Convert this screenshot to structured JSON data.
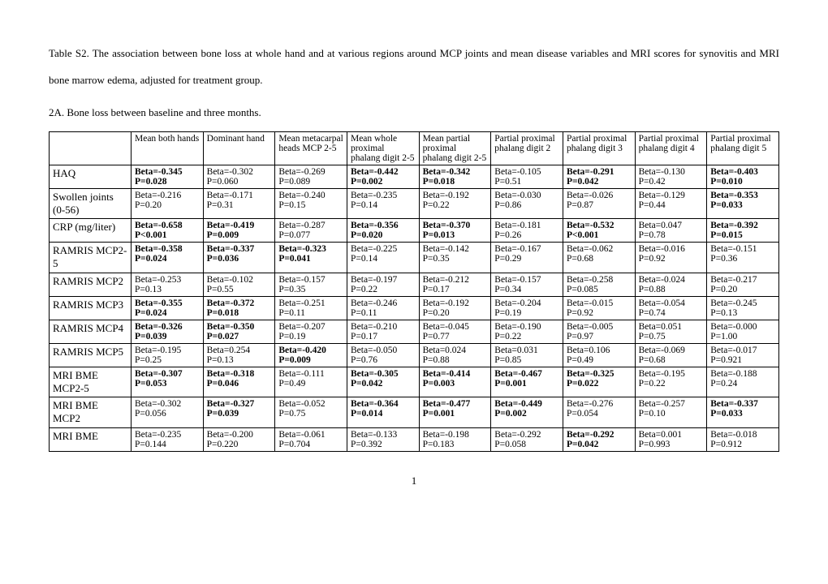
{
  "caption": "Table S2. The association between bone loss at whole hand and at various regions around MCP joints and mean disease variables and MRI scores for synovitis and MRI bone marrow edema, adjusted for treatment group.",
  "subtitle": "2A. Bone loss between baseline and three months.",
  "pageNumber": "1",
  "columns": [
    "",
    "Mean both hands",
    "Dominant hand",
    "Mean metacarpal heads MCP 2-5",
    "Mean whole proximal phalang digit 2-5",
    "Mean partial proximal phalang digit 2-5",
    "Partial proximal phalang digit 2",
    "Partial proximal phalang digit 3",
    "Partial proximal phalang digit 4",
    "Partial proximal phalang digit 5"
  ],
  "rows": [
    {
      "label": "HAQ",
      "cells": [
        {
          "beta": "Beta=-0.345",
          "p": "P=0.028",
          "bold": true
        },
        {
          "beta": "Beta=-0.302",
          "p": "P=0.060",
          "bold": false
        },
        {
          "beta": "Beta=-0.269",
          "p": "P=0.089",
          "bold": false
        },
        {
          "beta": "Beta=-0.442",
          "p": "P=0.002",
          "bold": true
        },
        {
          "beta": "Beta=-0.342",
          "p": "P=0.018",
          "bold": true
        },
        {
          "beta": "Beta=-0.105",
          "p": "P=0.51",
          "bold": false
        },
        {
          "beta": "Beta=-0.291",
          "p": "P=0.042",
          "bold": true
        },
        {
          "beta": "Beta=-0.130",
          "p": "P=0.42",
          "bold": false
        },
        {
          "beta": "Beta=-0.403",
          "p": "P=0.010",
          "bold": true
        }
      ]
    },
    {
      "label": "Swollen joints (0-56)",
      "cells": [
        {
          "beta": "Beta=-0.216",
          "p": "P=0.20",
          "bold": false
        },
        {
          "beta": "Beta=-0.171",
          "p": "P=0.31",
          "bold": false
        },
        {
          "beta": "Beta=-0.240",
          "p": "P=0.15",
          "bold": false
        },
        {
          "beta": "Beta=-0.235",
          "p": "P=0.14",
          "bold": false
        },
        {
          "beta": "Beta=-0.192",
          "p": "P=0.22",
          "bold": false
        },
        {
          "beta": "Beta=-0.030",
          "p": "P=0.86",
          "bold": false
        },
        {
          "beta": "Beta=-0.026",
          "p": "P=0.87",
          "bold": false
        },
        {
          "beta": "Beta=-0.129",
          "p": "P=0.44",
          "bold": false
        },
        {
          "beta": "Beta=-0.353",
          "p": "P=0.033",
          "bold": true
        }
      ]
    },
    {
      "label": "CRP (mg/liter)",
      "cells": [
        {
          "beta": "Beta=-0.658",
          "p": "P<0.001",
          "bold": true
        },
        {
          "beta": "Beta=-0.419",
          "p": "P=0.009",
          "bold": true
        },
        {
          "beta": "Beta=-0.287",
          "p": "P=0.077",
          "bold": false
        },
        {
          "beta": "Beta=-0.356",
          "p": "P=0.020",
          "bold": true
        },
        {
          "beta": "Beta=-0.370",
          "p": "P=0.013",
          "bold": true
        },
        {
          "beta": "Beta=-0.181",
          "p": "P=0.26",
          "bold": false
        },
        {
          "beta": "Beta=-0.532",
          "p": "P<0.001",
          "bold": true
        },
        {
          "beta": "Beta=0.047",
          "p": "P=0.78",
          "bold": false
        },
        {
          "beta": "Beta=-0.392",
          "p": "P=0.015",
          "bold": true
        }
      ]
    },
    {
      "label": "RAMRIS MCP2-5",
      "cells": [
        {
          "beta": "Beta=-0.358",
          "p": "P=0.024",
          "bold": true
        },
        {
          "beta": "Beta=-0.337",
          "p": "P=0.036",
          "bold": true
        },
        {
          "beta": "Beta=-0.323",
          "p": "P=0.041",
          "bold": true
        },
        {
          "beta": "Beta=-0.225",
          "p": "P=0.14",
          "bold": false
        },
        {
          "beta": "Beta=-0.142",
          "p": "P=0.35",
          "bold": false
        },
        {
          "beta": "Beta=-0.167",
          "p": "P=0.29",
          "bold": false
        },
        {
          "beta": "Beta=-0.062",
          "p": "P=0.68",
          "bold": false
        },
        {
          "beta": "Beta=-0.016",
          "p": "P=0.92",
          "bold": false
        },
        {
          "beta": "Beta=-0.151",
          "p": "P=0.36",
          "bold": false
        }
      ]
    },
    {
      "label": "RAMRIS MCP2",
      "cells": [
        {
          "beta": "Beta=-0.253",
          "p": "P=0.13",
          "bold": false
        },
        {
          "beta": "Beta=-0.102",
          "p": "P=0.55",
          "bold": false
        },
        {
          "beta": "Beta=-0.157",
          "p": "P=0.35",
          "bold": false
        },
        {
          "beta": "Beta=-0.197",
          "p": "P=0.22",
          "bold": false
        },
        {
          "beta": "Beta=-0.212",
          "p": "P=0.17",
          "bold": false
        },
        {
          "beta": "Beta=-0.157",
          "p": "P=0.34",
          "bold": false
        },
        {
          "beta": "Beta=-0.258",
          "p": "P=0.085",
          "bold": false
        },
        {
          "beta": "Beta=-0.024",
          "p": "P=0.88",
          "bold": false
        },
        {
          "beta": "Beta=-0.217",
          "p": "P=0.20",
          "bold": false
        }
      ]
    },
    {
      "label": "RAMRIS MCP3",
      "cells": [
        {
          "beta": "Beta=-0.355",
          "p": "P=0.024",
          "bold": true
        },
        {
          "beta": "Beta=-0.372",
          "p": "P=0.018",
          "bold": true
        },
        {
          "beta": "Beta=-0.251",
          "p": "P=0.11",
          "bold": false
        },
        {
          "beta": "Beta=-0.246",
          "p": "P=0.11",
          "bold": false
        },
        {
          "beta": "Beta=-0.192",
          "p": "P=0.20",
          "bold": false
        },
        {
          "beta": "Beta=-0.204",
          "p": "P=0.19",
          "bold": false
        },
        {
          "beta": "Beta=-0.015",
          "p": "P=0.92",
          "bold": false
        },
        {
          "beta": "Beta=-0.054",
          "p": "P=0.74",
          "bold": false
        },
        {
          "beta": "Beta=-0.245",
          "p": "P=0.13",
          "bold": false
        }
      ]
    },
    {
      "label": "RAMRIS MCP4",
      "cells": [
        {
          "beta": "Beta=-0.326",
          "p": "P=0.039",
          "bold": true
        },
        {
          "beta": "Beta=-0.350",
          "p": "P=0.027",
          "bold": true
        },
        {
          "beta": "Beta=-0.207",
          "p": "P=0.19",
          "bold": false
        },
        {
          "beta": "Beta=-0.210",
          "p": "P=0.17",
          "bold": false
        },
        {
          "beta": "Beta=-0.045",
          "p": "P=0.77",
          "bold": false
        },
        {
          "beta": "Beta=-0.190",
          "p": "P=0.22",
          "bold": false
        },
        {
          "beta": "Beta=-0.005",
          "p": "P=0.97",
          "bold": false
        },
        {
          "beta": "Beta=0.051",
          "p": "P=0.75",
          "bold": false
        },
        {
          "beta": "Beta=-0.000",
          "p": "P=1.00",
          "bold": false
        }
      ]
    },
    {
      "label": "RAMRIS MCP5",
      "cells": [
        {
          "beta": "Beta=-0.195",
          "p": "P=0.25",
          "bold": false
        },
        {
          "beta": "Beta=0.254",
          "p": "P=0.13",
          "bold": false
        },
        {
          "beta": "Beta=-0.420",
          "p": "P=0.009",
          "bold": true
        },
        {
          "beta": "Beta=-0.050",
          "p": "P=0.76",
          "bold": false
        },
        {
          "beta": "Beta=0.024",
          "p": "P=0.88",
          "bold": false
        },
        {
          "beta": "Beta=0.031",
          "p": "P=0.85",
          "bold": false
        },
        {
          "beta": "Beta=0.106",
          "p": "P=0.49",
          "bold": false
        },
        {
          "beta": "Beta=-0.069",
          "p": "P=0.68",
          "bold": false
        },
        {
          "beta": "Beta=-0.017",
          "p": "P=0.921",
          "bold": false
        }
      ]
    },
    {
      "label": "MRI BME MCP2-5",
      "cells": [
        {
          "beta": "Beta=-0.307",
          "p": "P=0.053",
          "bold": true
        },
        {
          "beta": "Beta=-0.318",
          "p": "P=0.046",
          "bold": true
        },
        {
          "beta": "Beta=-0.111",
          "p": "P=0.49",
          "bold": false
        },
        {
          "beta": "Beta=-0.305",
          "p": "P=0.042",
          "bold": true
        },
        {
          "beta": "Beta=-0.414",
          "p": "P=0.003",
          "bold": true
        },
        {
          "beta": "Beta=-0.467",
          "p": "P=0.001",
          "bold": true
        },
        {
          "beta": "Beta=-0.325",
          "p": "P=0.022",
          "bold": true
        },
        {
          "beta": "Beta=-0.195",
          "p": "P=0.22",
          "bold": false
        },
        {
          "beta": "Beta=-0.188",
          "p": "P=0.24",
          "bold": false
        }
      ]
    },
    {
      "label": "MRI BME MCP2",
      "cells": [
        {
          "beta": "Beta=-0.302",
          "p": "P=0.056",
          "bold": false
        },
        {
          "beta": "Beta=-0.327",
          "p": "P=0.039",
          "bold": true
        },
        {
          "beta": "Beta=-0.052",
          "p": "P=0.75",
          "bold": false
        },
        {
          "beta": "Beta=-0.364",
          "p": "P=0.014",
          "bold": true
        },
        {
          "beta": "Beta=-0.477",
          "p": "P=0.001",
          "bold": true
        },
        {
          "beta": "Beta=-0.449",
          "p": "P=0.002",
          "bold": true
        },
        {
          "beta": "Beta=-0.276",
          "p": "P=0.054",
          "bold": false
        },
        {
          "beta": "Beta=-0.257",
          "p": "P=0.10",
          "bold": false
        },
        {
          "beta": "Beta=-0.337",
          "p": "P=0.033",
          "bold": true
        }
      ]
    },
    {
      "label": "MRI BME",
      "cells": [
        {
          "beta": "Beta=-0.235",
          "p": "P=0.144",
          "bold": false
        },
        {
          "beta": "Beta=-0.200",
          "p": "P=0.220",
          "bold": false
        },
        {
          "beta": "Beta=-0.061",
          "p": "P=0.704",
          "bold": false
        },
        {
          "beta": "Beta=-0.133",
          "p": "P=0.392",
          "bold": false
        },
        {
          "beta": "Beta=-0.198",
          "p": "P=0.183",
          "bold": false
        },
        {
          "beta": "Beta=-0.292",
          "p": "P=0.058",
          "bold": false
        },
        {
          "beta": "Beta=-0.292",
          "p": "P=0.042",
          "bold": true
        },
        {
          "beta": "Beta=0.001",
          "p": "P=0.993",
          "bold": false
        },
        {
          "beta": "Beta=-0.018",
          "p": "P=0.912",
          "bold": false
        }
      ]
    }
  ]
}
